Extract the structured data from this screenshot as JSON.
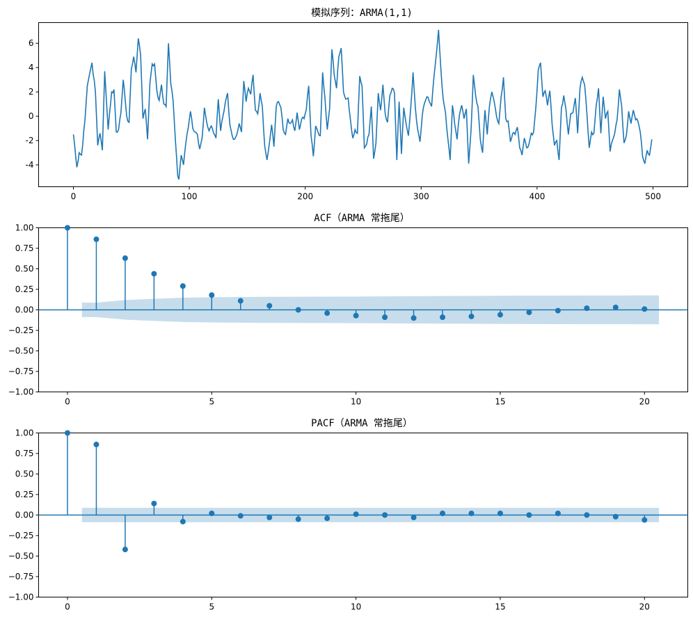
{
  "colors": {
    "line": "#1f77b4",
    "band": "#1f77b4",
    "frame": "#000000"
  },
  "chart_data": [
    {
      "type": "line",
      "title": "模拟序列：ARMA(1,1)",
      "xlabel": "",
      "ylabel": "",
      "xlim": [
        -30,
        530
      ],
      "ylim": [
        -5.8,
        7.7
      ],
      "x_ticks": [
        0,
        100,
        200,
        300,
        400,
        500
      ],
      "y_ticks": [
        -4,
        -2,
        0,
        2,
        4,
        6
      ],
      "n_points": 500,
      "anchors": [
        [
          0,
          -1.5
        ],
        [
          3,
          -4.2
        ],
        [
          5,
          -3
        ],
        [
          7,
          -3.2
        ],
        [
          10,
          -0.3
        ],
        [
          12,
          2.5
        ],
        [
          14,
          3.5
        ],
        [
          16,
          4.4
        ],
        [
          19,
          2
        ],
        [
          21,
          -2.4
        ],
        [
          23,
          -1.4
        ],
        [
          25,
          -2.8
        ],
        [
          27,
          3.7
        ],
        [
          30,
          -1.1
        ],
        [
          33,
          2
        ],
        [
          35,
          2.2
        ],
        [
          37,
          -1.3
        ],
        [
          39,
          -1.1
        ],
        [
          41,
          0.3
        ],
        [
          43,
          3
        ],
        [
          46,
          0
        ],
        [
          48,
          -0.5
        ],
        [
          50,
          3.9
        ],
        [
          52,
          4.9
        ],
        [
          54,
          3.6
        ],
        [
          56,
          6.4
        ],
        [
          58,
          5
        ],
        [
          60,
          -0.2
        ],
        [
          62,
          0.6
        ],
        [
          64,
          -1.9
        ],
        [
          66,
          2.7
        ],
        [
          68,
          4.3
        ],
        [
          70,
          4.3
        ],
        [
          72,
          2.1
        ],
        [
          74,
          1.3
        ],
        [
          76,
          2.6
        ],
        [
          78,
          1
        ],
        [
          80,
          0.8
        ],
        [
          82,
          6
        ],
        [
          84,
          2.7
        ],
        [
          86,
          1.3
        ],
        [
          88,
          -2
        ],
        [
          90,
          -4.9
        ],
        [
          91,
          -5.2
        ],
        [
          93,
          -3.2
        ],
        [
          95,
          -4
        ],
        [
          97,
          -2.2
        ],
        [
          99,
          -1
        ],
        [
          101,
          0.4
        ],
        [
          103,
          -1
        ],
        [
          105,
          -1.3
        ],
        [
          107,
          -1.5
        ],
        [
          109,
          -2.7
        ],
        [
          111,
          -1.8
        ],
        [
          113,
          0.7
        ],
        [
          115,
          -0.5
        ],
        [
          117,
          -1.2
        ],
        [
          119,
          -0.8
        ],
        [
          121,
          -1.4
        ],
        [
          123,
          -1.8
        ],
        [
          125,
          1.4
        ],
        [
          127,
          -1.2
        ],
        [
          129,
          0
        ],
        [
          131,
          1.1
        ],
        [
          133,
          1.9
        ],
        [
          135,
          -0.7
        ],
        [
          137,
          -1.6
        ],
        [
          139,
          -1.9
        ],
        [
          141,
          -1.5
        ],
        [
          143,
          -0.6
        ],
        [
          145,
          -1.3
        ],
        [
          147,
          2.9
        ],
        [
          149,
          1.2
        ],
        [
          151,
          2.3
        ],
        [
          153,
          1.8
        ],
        [
          155,
          3.4
        ],
        [
          157,
          0.5
        ],
        [
          159,
          0.2
        ],
        [
          161,
          1.9
        ],
        [
          163,
          0.8
        ],
        [
          165,
          -2.4
        ],
        [
          167,
          -3.6
        ],
        [
          169,
          -2.3
        ],
        [
          171,
          -0.7
        ],
        [
          173,
          -2.5
        ],
        [
          175,
          0.8
        ],
        [
          177,
          1.2
        ],
        [
          179,
          0.7
        ],
        [
          181,
          -1.1
        ],
        [
          183,
          -1.5
        ],
        [
          185,
          -0.2
        ],
        [
          187,
          -0.6
        ],
        [
          189,
          -0.3
        ],
        [
          191,
          -1.2
        ],
        [
          193,
          0.3
        ],
        [
          195,
          -1.1
        ],
        [
          197,
          -0.2
        ],
        [
          199,
          -0.2
        ],
        [
          201,
          0.6
        ],
        [
          203,
          2.5
        ],
        [
          205,
          -1.6
        ],
        [
          207,
          -3.3
        ],
        [
          209,
          -0.8
        ],
        [
          211,
          -1.3
        ],
        [
          213,
          -1.6
        ],
        [
          215,
          3.6
        ],
        [
          217,
          1.5
        ],
        [
          219,
          -1.1
        ],
        [
          221,
          0.6
        ],
        [
          223,
          5.5
        ],
        [
          225,
          3.4
        ],
        [
          227,
          2.3
        ],
        [
          229,
          4.9
        ],
        [
          231,
          5.6
        ],
        [
          233,
          2
        ],
        [
          235,
          1.4
        ],
        [
          237,
          1.5
        ],
        [
          239,
          -0.3
        ],
        [
          241,
          -1.8
        ],
        [
          243,
          -1.1
        ],
        [
          245,
          -1.4
        ],
        [
          247,
          3.3
        ],
        [
          249,
          2.5
        ],
        [
          251,
          -2.6
        ],
        [
          253,
          -2.3
        ],
        [
          255,
          -1.5
        ],
        [
          257,
          0.8
        ],
        [
          259,
          -3.5
        ],
        [
          261,
          -2.2
        ],
        [
          263,
          1.9
        ],
        [
          265,
          0.5
        ],
        [
          267,
          2.6
        ],
        [
          269,
          0.2
        ],
        [
          271,
          -0.5
        ],
        [
          273,
          1.7
        ],
        [
          275,
          2.3
        ],
        [
          277,
          1.9
        ],
        [
          279,
          -3.6
        ],
        [
          281,
          1.2
        ],
        [
          283,
          -3.1
        ],
        [
          285,
          0.7
        ],
        [
          287,
          -0.6
        ],
        [
          289,
          -1.6
        ],
        [
          291,
          0.7
        ],
        [
          293,
          3.6
        ],
        [
          295,
          0.7
        ],
        [
          297,
          -1.1
        ],
        [
          299,
          -2.1
        ],
        [
          301,
          0.1
        ],
        [
          303,
          1.1
        ],
        [
          305,
          1.6
        ],
        [
          307,
          1.2
        ],
        [
          309,
          0.8
        ],
        [
          311,
          3.2
        ],
        [
          313,
          5
        ],
        [
          315,
          7.1
        ],
        [
          317,
          3.9
        ],
        [
          319,
          1.4
        ],
        [
          321,
          0.3
        ],
        [
          323,
          -1.8
        ],
        [
          325,
          -3.6
        ],
        [
          327,
          0.9
        ],
        [
          329,
          -0.7
        ],
        [
          331,
          -1.9
        ],
        [
          333,
          0.1
        ],
        [
          335,
          0.9
        ],
        [
          337,
          -0.2
        ],
        [
          339,
          0.6
        ],
        [
          341,
          -3.9
        ],
        [
          343,
          -1.2
        ],
        [
          345,
          3.4
        ],
        [
          347,
          1.7
        ],
        [
          349,
          0.8
        ],
        [
          351,
          -1.9
        ],
        [
          353,
          -3
        ],
        [
          355,
          0.5
        ],
        [
          357,
          -1.5
        ],
        [
          359,
          0.9
        ],
        [
          361,
          2
        ],
        [
          363,
          1.2
        ],
        [
          365,
          0
        ],
        [
          367,
          -0.6
        ],
        [
          369,
          1.6
        ],
        [
          371,
          3.2
        ],
        [
          373,
          -0.2
        ],
        [
          375,
          -0.4
        ],
        [
          377,
          -2.1
        ],
        [
          379,
          -1.4
        ],
        [
          381,
          -1.5
        ],
        [
          383,
          -0.9
        ],
        [
          385,
          -2.6
        ],
        [
          387,
          -3.2
        ],
        [
          389,
          -1.8
        ],
        [
          391,
          -2.6
        ],
        [
          393,
          -2.3
        ],
        [
          395,
          -1.4
        ],
        [
          397,
          -1.3
        ],
        [
          399,
          0.8
        ],
        [
          401,
          3.8
        ],
        [
          403,
          4.4
        ],
        [
          405,
          1.6
        ],
        [
          407,
          2.1
        ],
        [
          409,
          0.9
        ],
        [
          411,
          2.1
        ],
        [
          413,
          -0.7
        ],
        [
          415,
          -2.4
        ],
        [
          417,
          -2
        ],
        [
          419,
          -3.6
        ],
        [
          421,
          0.7
        ],
        [
          423,
          1.7
        ],
        [
          425,
          0.5
        ],
        [
          427,
          -1.5
        ],
        [
          429,
          0.2
        ],
        [
          431,
          0.3
        ],
        [
          433,
          1.5
        ],
        [
          435,
          -1.4
        ],
        [
          437,
          2.3
        ],
        [
          439,
          3.2
        ],
        [
          441,
          2.6
        ],
        [
          443,
          0.2
        ],
        [
          445,
          -2.6
        ],
        [
          447,
          -1.3
        ],
        [
          449,
          -1.4
        ],
        [
          451,
          0.9
        ],
        [
          453,
          2.3
        ],
        [
          455,
          -1.4
        ],
        [
          457,
          1.6
        ],
        [
          459,
          -0.2
        ],
        [
          461,
          0.4
        ],
        [
          463,
          -2.9
        ],
        [
          465,
          -2
        ],
        [
          467,
          -1.4
        ],
        [
          469,
          -0.3
        ],
        [
          471,
          2.2
        ],
        [
          473,
          0.8
        ],
        [
          475,
          -2.2
        ],
        [
          477,
          -1.6
        ],
        [
          479,
          0.4
        ],
        [
          481,
          -0.6
        ],
        [
          483,
          0.5
        ],
        [
          485,
          -0.3
        ],
        [
          487,
          -0.4
        ],
        [
          489,
          -1.3
        ],
        [
          491,
          -3.3
        ],
        [
          493,
          -3.9
        ],
        [
          495,
          -2.8
        ],
        [
          497,
          -3.2
        ],
        [
          499,
          -1.9
        ]
      ]
    },
    {
      "type": "stem",
      "title": "ACF（ARMA 常拖尾）",
      "xlim": [
        -1,
        21.5
      ],
      "ylim": [
        -1,
        1
      ],
      "x_ticks": [
        0,
        5,
        10,
        15,
        20
      ],
      "y_ticks": [
        -1.0,
        -0.75,
        -0.5,
        -0.25,
        0.0,
        0.25,
        0.5,
        0.75,
        1.0
      ],
      "y_tick_labels": [
        "−1.00",
        "−0.75",
        "−0.50",
        "−0.25",
        "0.00",
        "0.25",
        "0.50",
        "0.75",
        "1.00"
      ],
      "lags": [
        0,
        1,
        2,
        3,
        4,
        5,
        6,
        7,
        8,
        9,
        10,
        11,
        12,
        13,
        14,
        15,
        16,
        17,
        18,
        19,
        20
      ],
      "values": [
        1.0,
        0.86,
        0.63,
        0.44,
        0.29,
        0.18,
        0.11,
        0.05,
        0.0,
        -0.04,
        -0.07,
        -0.09,
        -0.1,
        -0.09,
        -0.08,
        -0.06,
        -0.03,
        -0.01,
        0.02,
        0.03,
        0.01
      ],
      "confint_x": [
        0.5,
        1,
        2,
        3,
        4,
        5,
        6,
        7,
        8,
        9,
        10,
        11,
        12,
        13,
        14,
        15,
        16,
        17,
        18,
        19,
        20,
        20.5
      ],
      "confint_upper": [
        0.088,
        0.088,
        0.12,
        0.135,
        0.148,
        0.154,
        0.157,
        0.159,
        0.16,
        0.161,
        0.162,
        0.164,
        0.166,
        0.168,
        0.17,
        0.172,
        0.173,
        0.174,
        0.175,
        0.175,
        0.176,
        0.176
      ]
    },
    {
      "type": "stem",
      "title": "PACF（ARMA 常拖尾）",
      "xlim": [
        -1,
        21.5
      ],
      "ylim": [
        -1,
        1
      ],
      "x_ticks": [
        0,
        5,
        10,
        15,
        20
      ],
      "y_ticks": [
        -1.0,
        -0.75,
        -0.5,
        -0.25,
        0.0,
        0.25,
        0.5,
        0.75,
        1.0
      ],
      "y_tick_labels": [
        "−1.00",
        "−0.75",
        "−0.50",
        "−0.25",
        "0.00",
        "0.25",
        "0.50",
        "0.75",
        "1.00"
      ],
      "lags": [
        0,
        1,
        2,
        3,
        4,
        5,
        6,
        7,
        8,
        9,
        10,
        11,
        12,
        13,
        14,
        15,
        16,
        17,
        18,
        19,
        20
      ],
      "values": [
        1.0,
        0.86,
        -0.42,
        0.14,
        -0.08,
        0.02,
        -0.01,
        -0.03,
        -0.05,
        -0.04,
        0.01,
        0.0,
        -0.03,
        0.02,
        0.02,
        0.02,
        0.0,
        0.02,
        0.0,
        -0.02,
        -0.06
      ],
      "confint_x": [
        0.5,
        20.5
      ],
      "confint_upper": [
        0.088,
        0.088
      ]
    }
  ]
}
